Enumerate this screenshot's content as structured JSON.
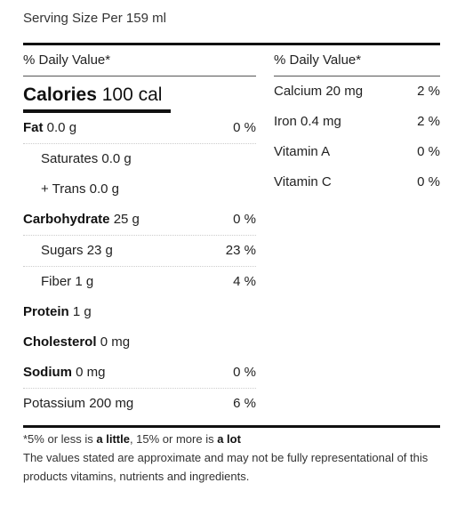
{
  "serving": "Serving Size Per 159 ml",
  "left": {
    "dv_header": "% Daily Value*",
    "calories_label": "Calories",
    "calories_value": "100 cal",
    "rows": [
      {
        "label": "Fat",
        "amount": "0.0 g",
        "pct": "0 %"
      },
      {
        "label": "Saturates 0.0 g",
        "amount": "",
        "pct": ""
      },
      {
        "label": "+ Trans 0.0 g",
        "amount": "",
        "pct": ""
      },
      {
        "label": "Carbohydrate",
        "amount": "25 g",
        "pct": "0 %"
      },
      {
        "label": "Sugars 23 g",
        "amount": "",
        "pct": "23 %"
      },
      {
        "label": "Fiber 1 g",
        "amount": "",
        "pct": "4 %"
      },
      {
        "label": "Protein",
        "amount": "1 g",
        "pct": ""
      },
      {
        "label": "Cholesterol",
        "amount": "0 mg",
        "pct": ""
      },
      {
        "label": "Sodium",
        "amount": "0 mg",
        "pct": "0 %"
      },
      {
        "label": "Potassium 200 mg",
        "amount": "",
        "pct": "6 %"
      }
    ]
  },
  "right": {
    "dv_header": "% Daily Value*",
    "rows": [
      {
        "label": "Calcium 20 mg",
        "pct": "2 %"
      },
      {
        "label": "Iron 0.4 mg",
        "pct": "2 %"
      },
      {
        "label": "Vitamin A",
        "pct": "0 %"
      },
      {
        "label": "Vitamin C",
        "pct": "0 %"
      }
    ]
  },
  "footnote": {
    "part1": "*5% or less is ",
    "bold1": "a little",
    "part2": ", 15% or more is ",
    "bold2": "a lot"
  },
  "disclaimer": "The values stated are approximate and may not be fully representational of this products vitamins, nutrients and ingredients."
}
